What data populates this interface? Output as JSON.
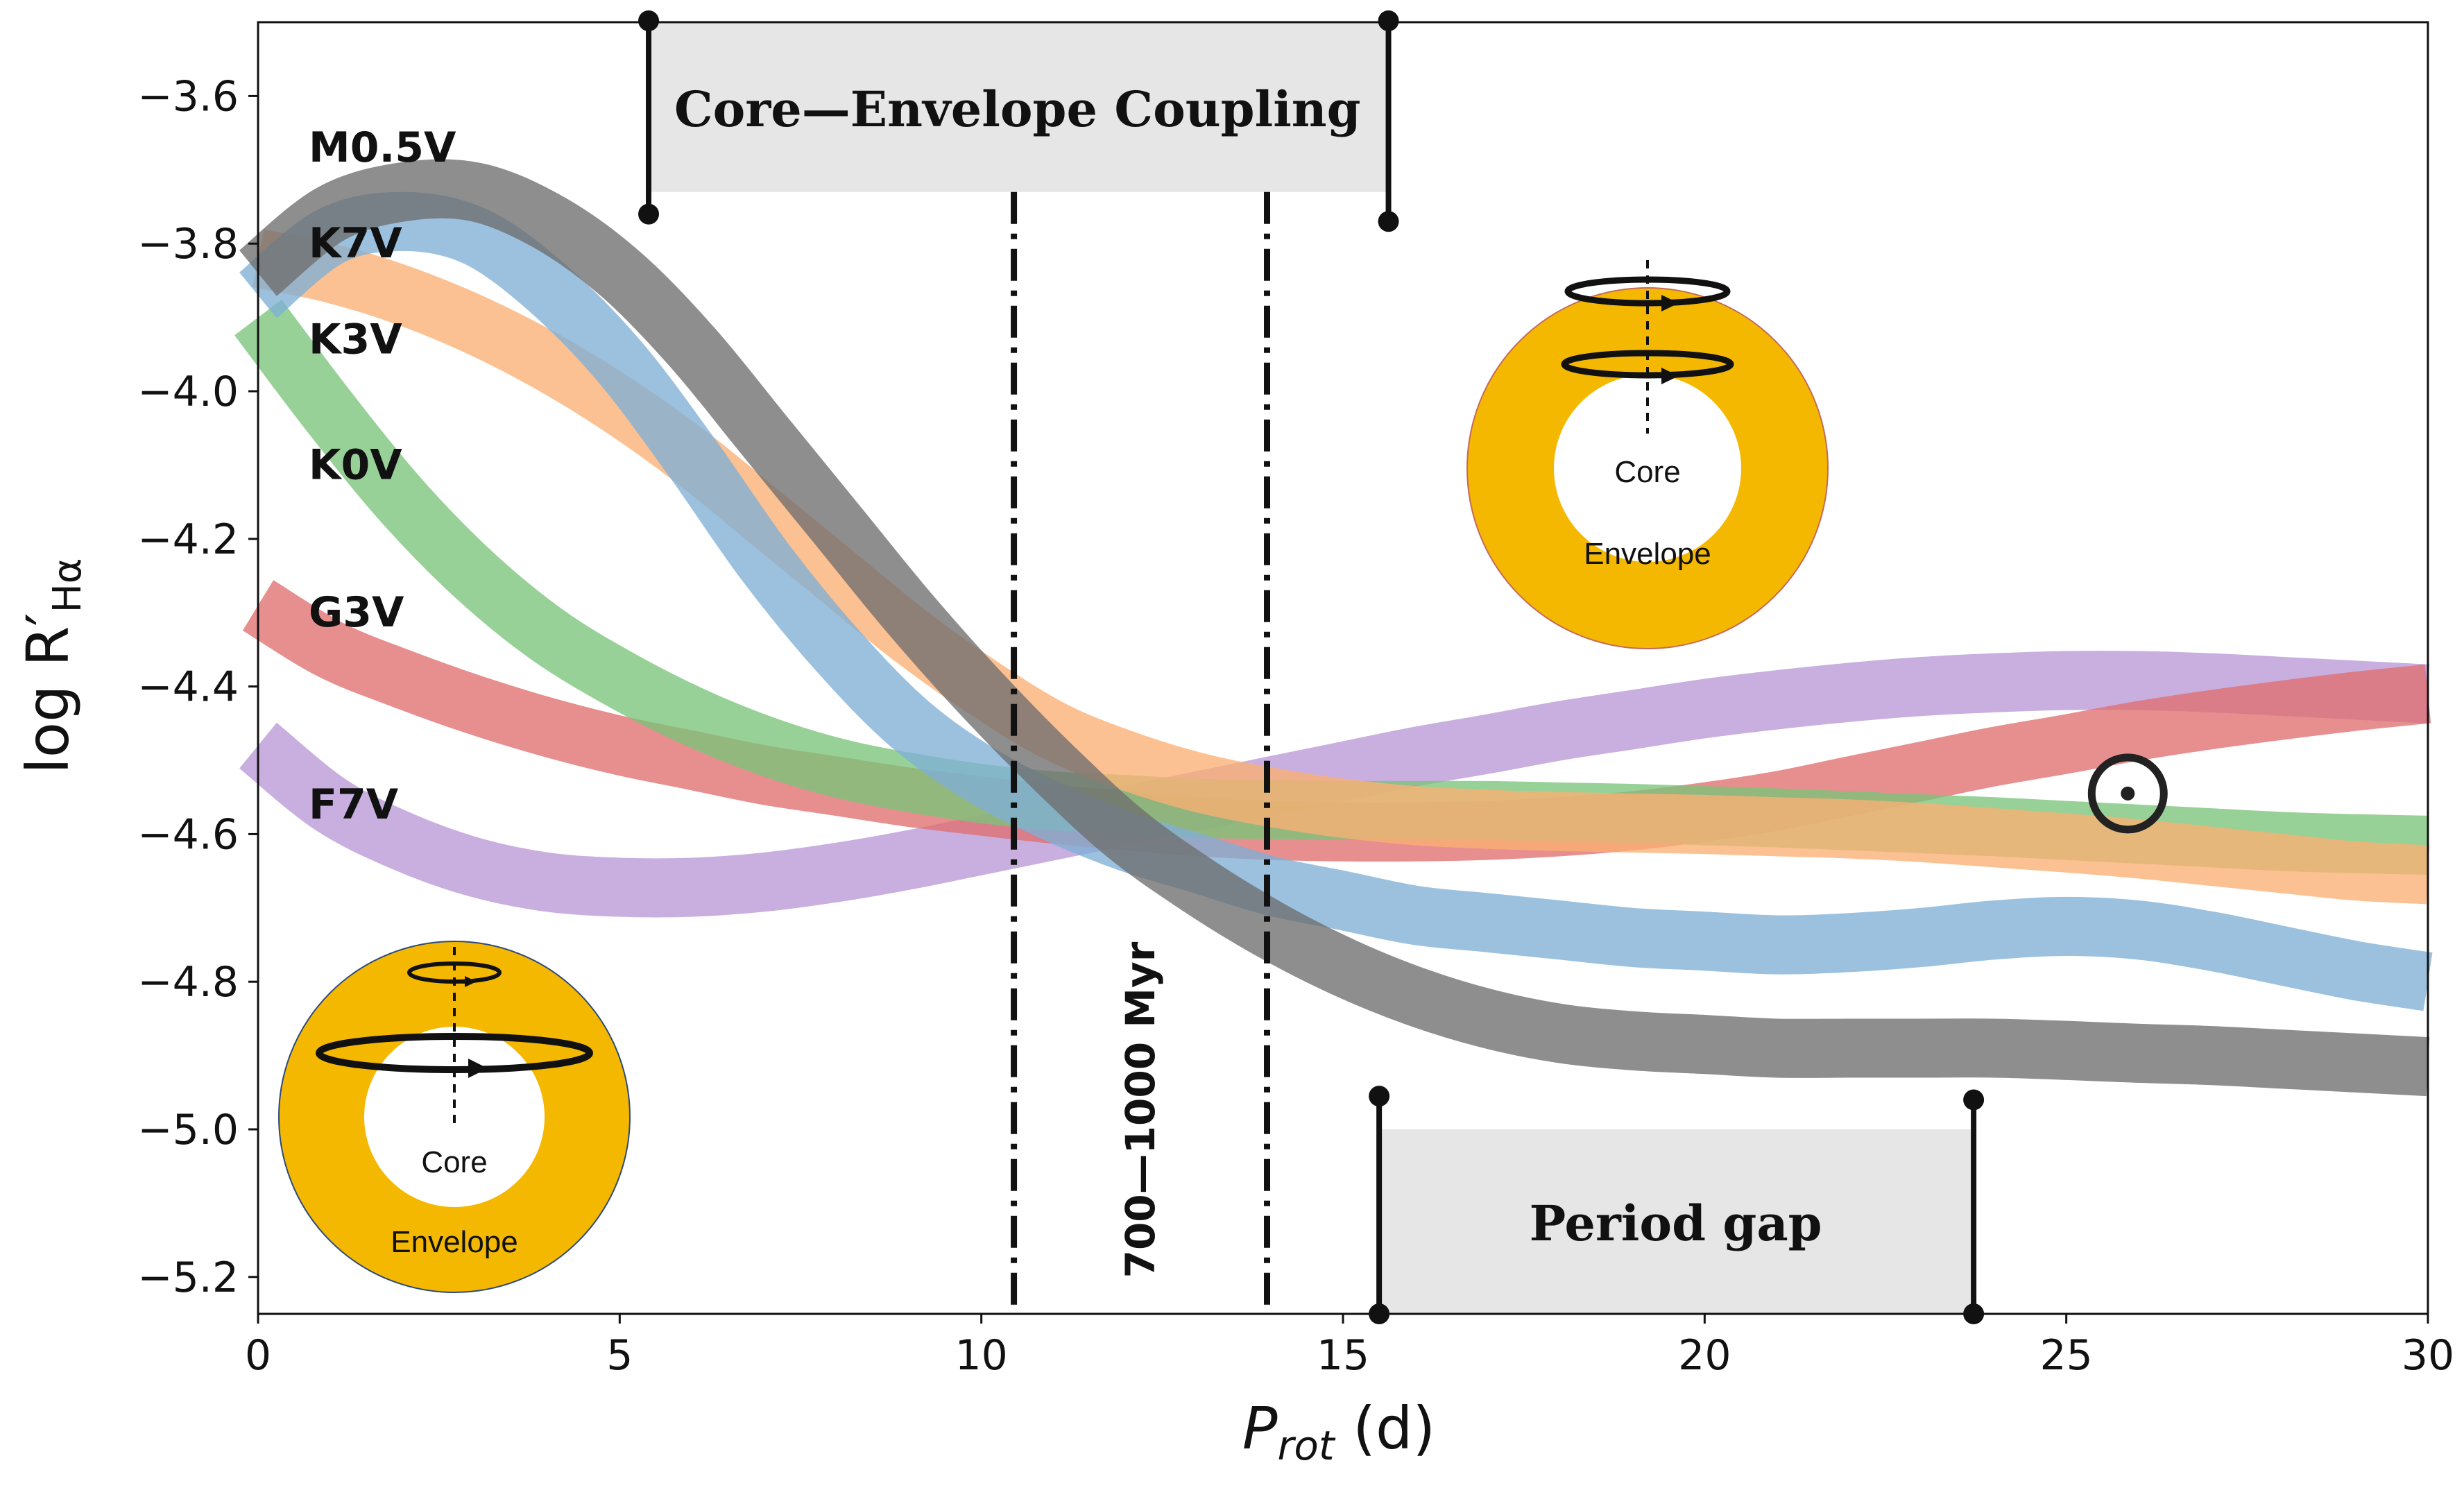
{
  "chart_data": {
    "type": "line",
    "title": "",
    "xlabel": "P_rot (d)",
    "xlabel_main": "P",
    "xlabel_sub": "rot",
    "xlabel_unit": " (d)",
    "ylabel": "log R′_Hα",
    "ylabel_main": "log R",
    "ylabel_prime": "′",
    "ylabel_sub": "Hα",
    "xlim": [
      0,
      30
    ],
    "ylim": [
      -5.25,
      -3.5
    ],
    "xticks": [
      0,
      5,
      10,
      15,
      20,
      25,
      30
    ],
    "xtick_labels": [
      "0",
      "5",
      "10",
      "15",
      "20",
      "25",
      "30"
    ],
    "yticks": [
      -3.6,
      -3.8,
      -4.0,
      -4.2,
      -4.4,
      -4.6,
      -4.8,
      -5.0,
      -5.2
    ],
    "ytick_labels": [
      "−3.6",
      "−3.8",
      "−4.0",
      "−4.2",
      "−4.4",
      "−4.6",
      "−4.8",
      "−5.0",
      "−5.2"
    ],
    "band_halfwidth": 0.04,
    "series": [
      {
        "name": "F7V",
        "color": "#b899d6",
        "label_at": [
          0.7,
          -4.56
        ],
        "x": [
          0,
          1,
          2,
          3,
          4,
          5,
          6,
          7,
          8,
          9,
          10,
          11,
          12,
          13,
          14,
          15,
          16,
          17,
          18,
          19,
          20,
          21,
          22,
          23,
          24,
          25,
          26,
          27,
          28,
          29,
          30
        ],
        "y": [
          -4.48,
          -4.56,
          -4.61,
          -4.645,
          -4.665,
          -4.672,
          -4.672,
          -4.665,
          -4.652,
          -4.635,
          -4.615,
          -4.595,
          -4.575,
          -4.555,
          -4.535,
          -4.515,
          -4.495,
          -4.478,
          -4.46,
          -4.445,
          -4.43,
          -4.418,
          -4.408,
          -4.4,
          -4.395,
          -4.392,
          -4.392,
          -4.395,
          -4.4,
          -4.405,
          -4.41
        ]
      },
      {
        "name": "G3V",
        "color": "#e0706f",
        "label_at": [
          0.7,
          -4.3
        ],
        "x": [
          0,
          1,
          2,
          3,
          4,
          5,
          6,
          7,
          8,
          9,
          10,
          11,
          12,
          13,
          14,
          15,
          16,
          17,
          18,
          19,
          20,
          21,
          22,
          23,
          24,
          25,
          26,
          27,
          28,
          29,
          30
        ],
        "y": [
          -4.29,
          -4.35,
          -4.39,
          -4.425,
          -4.455,
          -4.48,
          -4.5,
          -4.52,
          -4.535,
          -4.55,
          -4.562,
          -4.573,
          -4.582,
          -4.59,
          -4.595,
          -4.597,
          -4.597,
          -4.595,
          -4.59,
          -4.582,
          -4.57,
          -4.555,
          -4.535,
          -4.515,
          -4.495,
          -4.478,
          -4.46,
          -4.445,
          -4.432,
          -4.42,
          -4.41
        ]
      },
      {
        "name": "K0V",
        "color": "#7bc47a",
        "label_at": [
          0.7,
          -4.1
        ],
        "x": [
          0,
          1,
          2,
          3,
          4,
          5,
          6,
          7,
          8,
          9,
          10,
          11,
          12,
          13,
          14,
          15,
          16,
          17,
          18,
          19,
          20,
          21,
          22,
          23,
          24,
          25,
          26,
          27,
          28,
          29,
          30
        ],
        "y": [
          -3.9,
          -4.03,
          -4.15,
          -4.25,
          -4.33,
          -4.39,
          -4.44,
          -4.48,
          -4.51,
          -4.53,
          -4.545,
          -4.555,
          -4.56,
          -4.565,
          -4.567,
          -4.568,
          -4.568,
          -4.568,
          -4.57,
          -4.572,
          -4.575,
          -4.578,
          -4.582,
          -4.586,
          -4.59,
          -4.595,
          -4.6,
          -4.605,
          -4.61,
          -4.613,
          -4.615
        ]
      },
      {
        "name": "K3V",
        "color": "#fbb073",
        "label_at": [
          0.7,
          -3.93
        ],
        "x": [
          0,
          1,
          2,
          3,
          4,
          5,
          6,
          7,
          8,
          9,
          10,
          11,
          12,
          13,
          14,
          15,
          16,
          17,
          18,
          19,
          20,
          21,
          22,
          23,
          24,
          25,
          26,
          27,
          28,
          29,
          30
        ],
        "y": [
          -3.82,
          -3.84,
          -3.87,
          -3.91,
          -3.96,
          -4.02,
          -4.09,
          -4.17,
          -4.25,
          -4.33,
          -4.4,
          -4.46,
          -4.5,
          -4.53,
          -4.55,
          -4.565,
          -4.575,
          -4.58,
          -4.583,
          -4.585,
          -4.587,
          -4.59,
          -4.593,
          -4.598,
          -4.605,
          -4.612,
          -4.62,
          -4.63,
          -4.64,
          -4.65,
          -4.655
        ]
      },
      {
        "name": "K7V",
        "color": "#7fb0d6",
        "label_at": [
          0.7,
          -3.8
        ],
        "x": [
          0,
          1,
          2,
          3,
          4,
          5,
          6,
          7,
          8,
          9,
          10,
          11,
          12,
          13,
          14,
          15,
          16,
          17,
          18,
          19,
          20,
          21,
          22,
          23,
          24,
          25,
          26,
          27,
          28,
          29,
          30
        ],
        "y": [
          -3.87,
          -3.79,
          -3.77,
          -3.79,
          -3.86,
          -3.96,
          -4.09,
          -4.23,
          -4.35,
          -4.45,
          -4.52,
          -4.57,
          -4.61,
          -4.64,
          -4.67,
          -4.69,
          -4.71,
          -4.72,
          -4.73,
          -4.74,
          -4.745,
          -4.75,
          -4.747,
          -4.74,
          -4.73,
          -4.725,
          -4.73,
          -4.745,
          -4.765,
          -4.785,
          -4.8
        ]
      },
      {
        "name": "M0.5V",
        "color": "#6e6e6e",
        "label_at": [
          0.7,
          -3.67
        ],
        "x": [
          0,
          1,
          2,
          3,
          4,
          5,
          6,
          7,
          8,
          9,
          10,
          11,
          12,
          13,
          14,
          15,
          16,
          17,
          18,
          19,
          20,
          21,
          22,
          23,
          24,
          25,
          26,
          27,
          28,
          29,
          30
        ],
        "y": [
          -3.84,
          -3.76,
          -3.73,
          -3.73,
          -3.77,
          -3.84,
          -3.94,
          -4.06,
          -4.18,
          -4.3,
          -4.41,
          -4.51,
          -4.6,
          -4.67,
          -4.73,
          -4.78,
          -4.82,
          -4.85,
          -4.87,
          -4.88,
          -4.885,
          -4.89,
          -4.89,
          -4.89,
          -4.89,
          -4.893,
          -4.897,
          -4.9,
          -4.905,
          -4.91,
          -4.915
        ]
      }
    ],
    "vlines": [
      10.45,
      13.95
    ],
    "age_label": "700—1000 Myr",
    "coupling_region": {
      "label": "Core—Envelope Coupling",
      "x": [
        5.4,
        15.6
      ],
      "y": [
        -3.5,
        -3.73
      ]
    },
    "period_gap": {
      "label": "Period gap",
      "x": [
        15.5,
        23.7
      ],
      "y": [
        -5.0,
        -5.25
      ]
    },
    "sun_marker": {
      "x": 25.85,
      "y": -4.545
    }
  },
  "diagrams": {
    "core_label": "Core",
    "envelope_label": "Envelope",
    "envelope_color": "#f5b800"
  }
}
